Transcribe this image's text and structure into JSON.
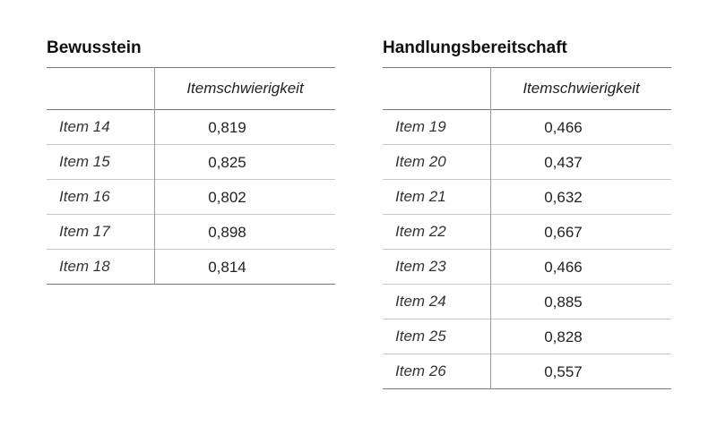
{
  "tables": [
    {
      "title": "Bewusstein",
      "header": {
        "item": "",
        "value": "Itemschwierigkeit"
      },
      "rows": [
        {
          "item": "Item 14",
          "value": "0,819"
        },
        {
          "item": "Item 15",
          "value": "0,825"
        },
        {
          "item": "Item 16",
          "value": "0,802"
        },
        {
          "item": "Item 17",
          "value": "0,898"
        },
        {
          "item": "Item 18",
          "value": "0,814"
        }
      ]
    },
    {
      "title": "Handlungsbereitschaft",
      "header": {
        "item": "",
        "value": "Itemschwierigkeit"
      },
      "rows": [
        {
          "item": "Item 19",
          "value": "0,466"
        },
        {
          "item": "Item 20",
          "value": "0,437"
        },
        {
          "item": "Item 21",
          "value": "0,632"
        },
        {
          "item": "Item 22",
          "value": "0,667"
        },
        {
          "item": "Item 23",
          "value": "0,466"
        },
        {
          "item": "Item 24",
          "value": "0,885"
        },
        {
          "item": "Item 25",
          "value": "0,828"
        },
        {
          "item": "Item 26",
          "value": "0,557"
        }
      ]
    }
  ]
}
